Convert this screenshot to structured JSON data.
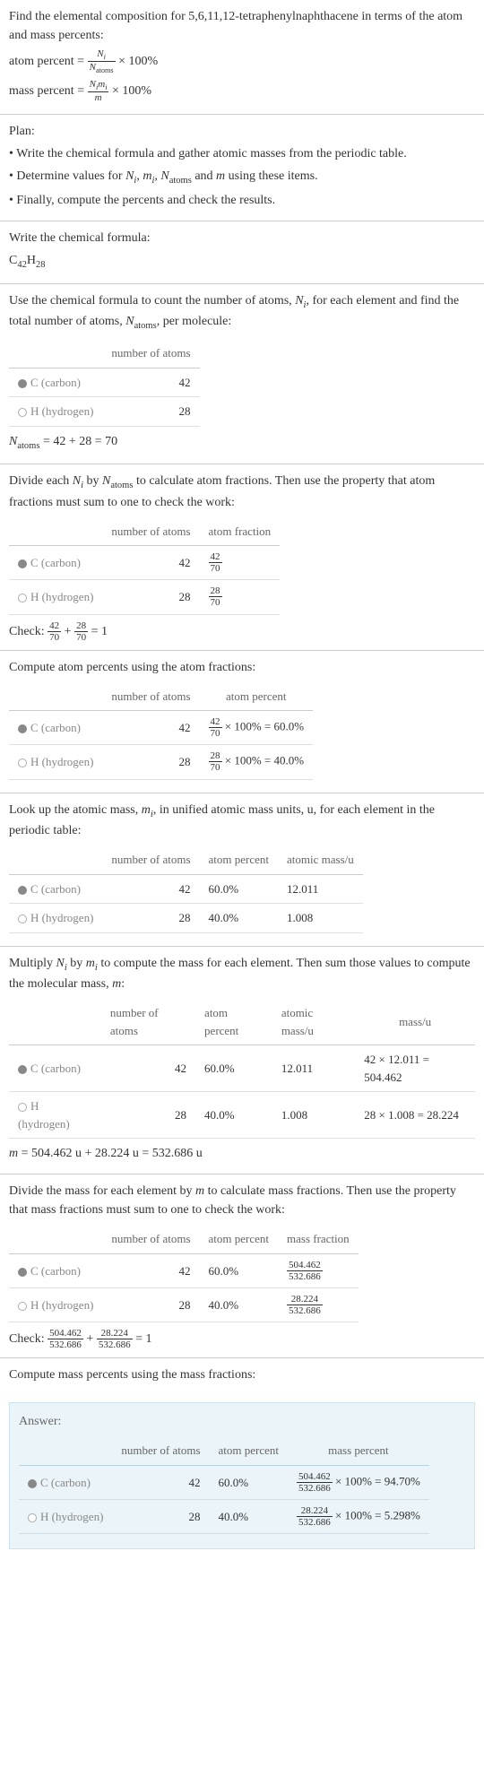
{
  "intro": {
    "prompt": "Find the elemental composition for 5,6,11,12-tetraphenylnaphthacene in terms of the atom and mass percents:",
    "atom_percent_label": "atom percent = ",
    "atom_percent_frac_num": "N",
    "atom_percent_frac_num_sub": "i",
    "atom_percent_frac_den": "N",
    "atom_percent_frac_den_sub": "atoms",
    "times_100": " × 100%",
    "mass_percent_label": "mass percent = ",
    "mass_percent_frac_num": "N",
    "mass_percent_frac_num_sub": "i",
    "mass_percent_frac_num2": "m",
    "mass_percent_frac_num2_sub": "i",
    "mass_percent_frac_den": "m"
  },
  "plan": {
    "heading": "Plan:",
    "b1": "• Write the chemical formula and gather atomic masses from the periodic table.",
    "b2_pre": "• Determine values for ",
    "b2_n": "N",
    "b2_ni_sub": "i",
    "b2_c1": ", ",
    "b2_m": "m",
    "b2_mi_sub": "i",
    "b2_c2": ", ",
    "b2_na": "N",
    "b2_na_sub": "atoms",
    "b2_c3": " and ",
    "b2_m2": "m",
    "b2_post": " using these items.",
    "b3": "• Finally, compute the percents and check the results."
  },
  "step1": {
    "text": "Write the chemical formula:",
    "c": "C",
    "c_sub": "42",
    "h": "H",
    "h_sub": "28"
  },
  "step2": {
    "text_pre": "Use the chemical formula to count the number of atoms, ",
    "n": "N",
    "ni_sub": "i",
    "text_mid": ", for each element and find the total number of atoms, ",
    "na": "N",
    "na_sub": "atoms",
    "text_post": ", per molecule:",
    "headers": {
      "col2": "number of atoms"
    },
    "rows": {
      "c": {
        "label": "C (carbon)",
        "atoms": "42"
      },
      "h": {
        "label": "H (hydrogen)",
        "atoms": "28"
      }
    },
    "sum_pre": "N",
    "sum_sub": "atoms",
    "sum_eq": " = 42 + 28 = 70"
  },
  "step3": {
    "text_pre": "Divide each ",
    "n1": "N",
    "n1_sub": "i",
    "text_mid": " by ",
    "n2": "N",
    "n2_sub": "atoms",
    "text_post": " to calculate atom fractions. Then use the property that atom fractions must sum to one to check the work:",
    "headers": {
      "col2": "number of atoms",
      "col3": "atom fraction"
    },
    "rows": {
      "c": {
        "label": "C (carbon)",
        "atoms": "42",
        "frac_num": "42",
        "frac_den": "70"
      },
      "h": {
        "label": "H (hydrogen)",
        "atoms": "28",
        "frac_num": "28",
        "frac_den": "70"
      }
    },
    "check_label": "Check: ",
    "check_f1_num": "42",
    "check_f1_den": "70",
    "check_plus": " + ",
    "check_f2_num": "28",
    "check_f2_den": "70",
    "check_eq": " = 1"
  },
  "step4": {
    "text": "Compute atom percents using the atom fractions:",
    "headers": {
      "col2": "number of atoms",
      "col3": "atom percent"
    },
    "rows": {
      "c": {
        "label": "C (carbon)",
        "atoms": "42",
        "frac_num": "42",
        "frac_den": "70",
        "result": " × 100% = 60.0%"
      },
      "h": {
        "label": "H (hydrogen)",
        "atoms": "28",
        "frac_num": "28",
        "frac_den": "70",
        "result": " × 100% = 40.0%"
      }
    }
  },
  "step5": {
    "text_pre": "Look up the atomic mass, ",
    "m": "m",
    "m_sub": "i",
    "text_post": ", in unified atomic mass units, u, for each element in the periodic table:",
    "headers": {
      "col2": "number of atoms",
      "col3": "atom percent",
      "col4": "atomic mass/u"
    },
    "rows": {
      "c": {
        "label": "C (carbon)",
        "atoms": "42",
        "percent": "60.0%",
        "mass": "12.011"
      },
      "h": {
        "label": "H (hydrogen)",
        "atoms": "28",
        "percent": "40.0%",
        "mass": "1.008"
      }
    }
  },
  "step6": {
    "text_pre": "Multiply ",
    "n": "N",
    "n_sub": "i",
    "text_mid1": " by ",
    "m": "m",
    "m_sub": "i",
    "text_mid2": " to compute the mass for each element. Then sum those values to compute the molecular mass, ",
    "m2": "m",
    "text_post": ":",
    "headers": {
      "col2": "number of atoms",
      "col3": "atom percent",
      "col4": "atomic mass/u",
      "col5": "mass/u"
    },
    "rows": {
      "c": {
        "label": "C (carbon)",
        "atoms": "42",
        "percent": "60.0%",
        "mass": "12.011",
        "calc": "42 × 12.011 = 504.462"
      },
      "h": {
        "label": "H (hydrogen)",
        "atoms": "28",
        "percent": "40.0%",
        "mass": "1.008",
        "calc": "28 × 1.008 = 28.224"
      }
    },
    "sum_pre": "m",
    "sum_eq": " = 504.462 u + 28.224 u = 532.686 u"
  },
  "step7": {
    "text_pre": "Divide the mass for each element by ",
    "m": "m",
    "text_post": " to calculate mass fractions. Then use the property that mass fractions must sum to one to check the work:",
    "headers": {
      "col2": "number of atoms",
      "col3": "atom percent",
      "col4": "mass fraction"
    },
    "rows": {
      "c": {
        "label": "C (carbon)",
        "atoms": "42",
        "percent": "60.0%",
        "frac_num": "504.462",
        "frac_den": "532.686"
      },
      "h": {
        "label": "H (hydrogen)",
        "atoms": "28",
        "percent": "40.0%",
        "frac_num": "28.224",
        "frac_den": "532.686"
      }
    },
    "check_label": "Check: ",
    "check_f1_num": "504.462",
    "check_f1_den": "532.686",
    "check_plus": " + ",
    "check_f2_num": "28.224",
    "check_f2_den": "532.686",
    "check_eq": " = 1"
  },
  "step8": {
    "text": "Compute mass percents using the mass fractions:"
  },
  "answer": {
    "title": "Answer:",
    "headers": {
      "col2": "number of atoms",
      "col3": "atom percent",
      "col4": "mass percent"
    },
    "rows": {
      "c": {
        "label": "C (carbon)",
        "atoms": "42",
        "percent": "60.0%",
        "frac_num": "504.462",
        "frac_den": "532.686",
        "result": " × 100% = 94.70%"
      },
      "h": {
        "label": "H (hydrogen)",
        "atoms": "28",
        "percent": "40.0%",
        "frac_num": "28.224",
        "frac_den": "532.686",
        "result": " × 100% = 5.298%"
      }
    }
  },
  "colors": {
    "carbon_dot": "#888888",
    "hydrogen_dot": "#ffffff",
    "hydrogen_border": "#aaaaaa",
    "answer_bg": "#eaf4f9",
    "answer_border": "#cde4ef"
  }
}
